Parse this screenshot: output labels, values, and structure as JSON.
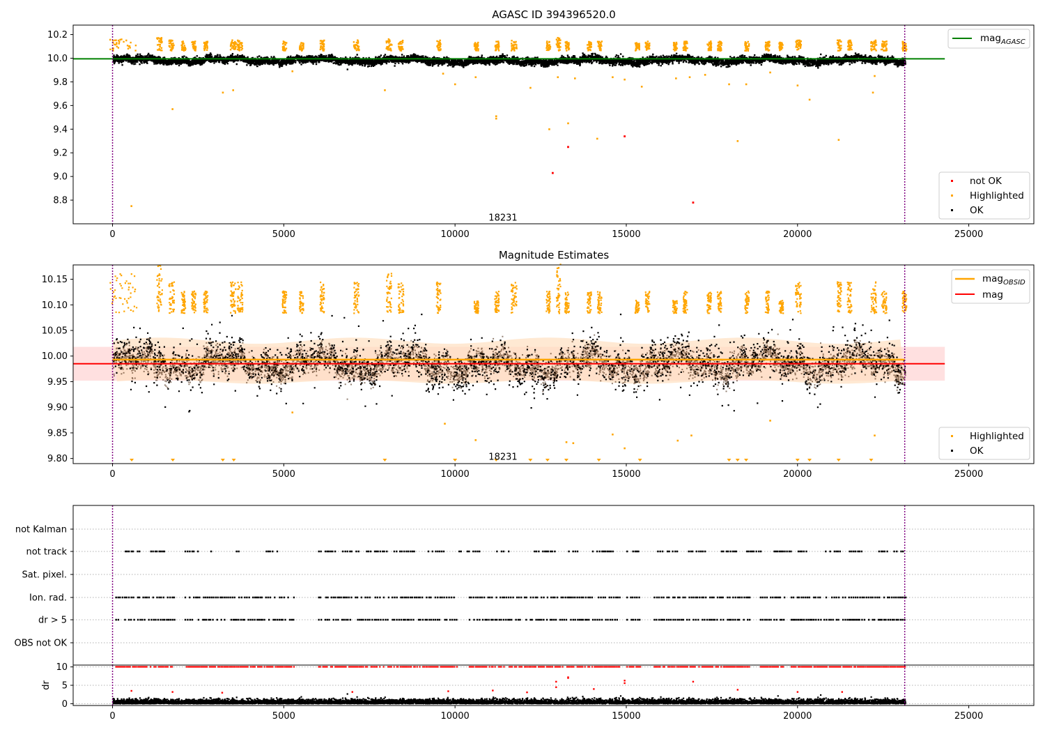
{
  "chart_data": [
    {
      "id": "agasc",
      "type": "scatter",
      "title": "AGASC ID 394396520.0",
      "xlim": [
        -1150,
        26900
      ],
      "ylim": [
        8.6,
        10.28
      ],
      "xticks": [
        0,
        5000,
        10000,
        15000,
        20000,
        25000
      ],
      "yticks": [
        8.8,
        9.0,
        9.2,
        9.4,
        9.6,
        9.8,
        10.0,
        10.2
      ],
      "ytick_labels": [
        "8.8",
        "9.0",
        "9.2",
        "9.4",
        "9.6",
        "9.8",
        "10.0",
        "10.2"
      ],
      "vlines": [
        0,
        23130
      ],
      "hline": {
        "name": "mag_AGASC",
        "legend_main": "mag",
        "legend_sub": "AGASC",
        "value": 9.995,
        "x_range": [
          -1150,
          24300
        ],
        "color": "#008000"
      },
      "obsid_label": {
        "text": "18231",
        "x": 11400,
        "y": 8.65
      },
      "band": {
        "center": 9.99,
        "half_width": 0.035,
        "wave": 0.02
      },
      "highlight_clusters": [
        [
          300,
          400,
          10.13
        ],
        [
          1350,
          80,
          10.14
        ],
        [
          1700,
          80,
          10.12
        ],
        [
          2050,
          60,
          10.11
        ],
        [
          2350,
          60,
          10.11
        ],
        [
          2700,
          60,
          10.11
        ],
        [
          3500,
          80,
          10.12
        ],
        [
          3700,
          80,
          10.12
        ],
        [
          5000,
          60,
          10.11
        ],
        [
          5500,
          60,
          10.11
        ],
        [
          6100,
          60,
          10.12
        ],
        [
          7100,
          80,
          10.12
        ],
        [
          8050,
          80,
          10.13
        ],
        [
          8400,
          80,
          10.12
        ],
        [
          9500,
          60,
          10.12
        ],
        [
          10600,
          60,
          10.1
        ],
        [
          11200,
          60,
          10.11
        ],
        [
          11700,
          80,
          10.12
        ],
        [
          12700,
          60,
          10.11
        ],
        [
          13000,
          60,
          10.14
        ],
        [
          13250,
          60,
          10.11
        ],
        [
          13900,
          60,
          10.11
        ],
        [
          14200,
          60,
          10.11
        ],
        [
          15300,
          60,
          10.1
        ],
        [
          15600,
          60,
          10.11
        ],
        [
          16400,
          60,
          10.1
        ],
        [
          16700,
          60,
          10.11
        ],
        [
          17400,
          60,
          10.11
        ],
        [
          17700,
          60,
          10.11
        ],
        [
          18500,
          60,
          10.11
        ],
        [
          19100,
          60,
          10.11
        ],
        [
          19500,
          60,
          10.1
        ],
        [
          20000,
          80,
          10.12
        ],
        [
          21200,
          60,
          10.12
        ],
        [
          21500,
          60,
          10.12
        ],
        [
          22200,
          80,
          10.12
        ],
        [
          22500,
          80,
          10.11
        ],
        [
          23100,
          60,
          10.11
        ]
      ],
      "highlight_outliers": [
        [
          550,
          8.75
        ],
        [
          1750,
          9.57
        ],
        [
          3220,
          9.71
        ],
        [
          3520,
          9.73
        ],
        [
          5250,
          9.89
        ],
        [
          7950,
          9.73
        ],
        [
          9650,
          9.87
        ],
        [
          10000,
          9.78
        ],
        [
          10600,
          9.84
        ],
        [
          11200,
          9.49
        ],
        [
          11200,
          9.51
        ],
        [
          12200,
          9.75
        ],
        [
          12750,
          9.4
        ],
        [
          13000,
          9.84
        ],
        [
          13300,
          9.45
        ],
        [
          13500,
          9.83
        ],
        [
          14150,
          9.32
        ],
        [
          14600,
          9.84
        ],
        [
          14950,
          9.82
        ],
        [
          15450,
          9.76
        ],
        [
          16450,
          9.83
        ],
        [
          16850,
          9.84
        ],
        [
          17300,
          9.86
        ],
        [
          18000,
          9.78
        ],
        [
          18250,
          9.3
        ],
        [
          18500,
          9.78
        ],
        [
          19200,
          9.88
        ],
        [
          20000,
          9.77
        ],
        [
          20350,
          9.65
        ],
        [
          21200,
          9.31
        ],
        [
          22200,
          9.71
        ],
        [
          22250,
          9.85
        ]
      ],
      "notok_points": [
        [
          12850,
          9.03
        ],
        [
          13300,
          9.25
        ],
        [
          14950,
          9.34
        ],
        [
          16950,
          8.78
        ]
      ],
      "legend": [
        {
          "label": "not OK",
          "color": "#ff0000"
        },
        {
          "label": "Highlighted",
          "color": "#ffa500"
        },
        {
          "label": "OK",
          "color": "#000000"
        }
      ]
    },
    {
      "id": "estimates",
      "type": "scatter",
      "title": "Magnitude Estimates",
      "xlim": [
        -1150,
        26900
      ],
      "ylim": [
        9.79,
        10.178
      ],
      "xticks": [
        0,
        5000,
        10000,
        15000,
        20000,
        25000
      ],
      "yticks": [
        9.8,
        9.85,
        9.9,
        9.95,
        10.0,
        10.05,
        10.1,
        10.15
      ],
      "ytick_labels": [
        "9.80",
        "9.85",
        "9.90",
        "9.95",
        "10.00",
        "10.05",
        "10.10",
        "10.15"
      ],
      "vlines": [
        0,
        23130
      ],
      "mag_obsid": {
        "legend_main": "mag",
        "legend_sub": "OBSID",
        "value": 9.993,
        "color": "#ffa500"
      },
      "mag": {
        "legend": "mag",
        "value": 9.985,
        "band": [
          9.952,
          10.018
        ],
        "x_range": [
          -1150,
          24300
        ],
        "color": "#ff0000"
      },
      "obsid_label": {
        "text": "18231",
        "x": 11400,
        "y": 9.8
      },
      "below_limit_markers": [
        560,
        1760,
        3220,
        3540,
        7950,
        10000,
        11200,
        12200,
        12700,
        13250,
        14200,
        15400,
        18000,
        18250,
        18500,
        20000,
        20350,
        21200,
        22150
      ],
      "legend": [
        {
          "label": "Highlighted",
          "color": "#ffa500"
        },
        {
          "label": "OK",
          "color": "#000000"
        }
      ]
    },
    {
      "id": "flags",
      "type": "scatter",
      "categories": [
        "not Kalman",
        "not track",
        "Sat. pixel.",
        "Ion. rad.",
        "dr > 5",
        "OBS not OK"
      ],
      "xlim": [
        -1150,
        26900
      ],
      "vlines": [
        0,
        23130
      ],
      "flag_segments": {
        "not track": [
          [
            300,
            800
          ],
          [
            1100,
            1500
          ],
          [
            2100,
            2500
          ],
          [
            2800,
            2900
          ],
          [
            3600,
            3800
          ],
          [
            4400,
            4800
          ],
          [
            6000,
            6600
          ],
          [
            6700,
            7200
          ],
          [
            7400,
            8000
          ],
          [
            8200,
            8800
          ],
          [
            9200,
            9800
          ],
          [
            10100,
            10700
          ],
          [
            11200,
            11600
          ],
          [
            12300,
            12900
          ],
          [
            13300,
            13600
          ],
          [
            14000,
            14600
          ],
          [
            15000,
            15400
          ],
          [
            15900,
            16500
          ],
          [
            16800,
            17300
          ],
          [
            17700,
            18200
          ],
          [
            18500,
            19000
          ],
          [
            19300,
            19800
          ],
          [
            20000,
            20400
          ],
          [
            20800,
            21300
          ],
          [
            21500,
            21900
          ],
          [
            22300,
            22600
          ],
          [
            22800,
            23100
          ]
        ],
        "Ion. rad.": [
          [
            80,
            1800
          ],
          [
            2100,
            5300
          ],
          [
            6000,
            10050
          ],
          [
            10400,
            14800
          ],
          [
            15000,
            15400
          ],
          [
            15800,
            18600
          ],
          [
            18900,
            19600
          ],
          [
            19800,
            23150
          ]
        ],
        "dr > 5": [
          [
            80,
            1800
          ],
          [
            2100,
            5300
          ],
          [
            6000,
            10050
          ],
          [
            10400,
            14800
          ],
          [
            15000,
            15400
          ],
          [
            15800,
            18600
          ],
          [
            18900,
            19600
          ],
          [
            19800,
            23150
          ]
        ]
      }
    },
    {
      "id": "dr",
      "type": "scatter",
      "ylabel": "dr",
      "xlim": [
        -1150,
        26900
      ],
      "ylim": [
        -0.5,
        10.5
      ],
      "xticks": [
        0,
        5000,
        10000,
        15000,
        20000,
        25000
      ],
      "yticks": [
        0,
        5,
        10
      ],
      "ytick_labels": [
        "0",
        "5",
        "10"
      ],
      "vlines": [
        0,
        23130
      ],
      "dr_outliers": [
        [
          550,
          3.5
        ],
        [
          1750,
          3.2
        ],
        [
          3200,
          3
        ],
        [
          7000,
          3.2
        ],
        [
          9800,
          3.4
        ],
        [
          11100,
          3.6
        ],
        [
          12100,
          3.1
        ],
        [
          12950,
          6
        ],
        [
          12950,
          4.5
        ],
        [
          13300,
          7
        ],
        [
          13300,
          7.2
        ],
        [
          14050,
          4
        ],
        [
          14950,
          6.3
        ],
        [
          14950,
          5.6
        ],
        [
          16950,
          6
        ],
        [
          18250,
          3.8
        ],
        [
          20000,
          3.2
        ],
        [
          21300,
          3.2
        ]
      ]
    }
  ],
  "colors": {
    "ok": "#000000",
    "highlighted": "#ffa500",
    "not_ok": "#ff0000",
    "agasc_line": "#008000",
    "vline": "#800080",
    "grid": "#b0b0b0",
    "band_fill": "#ffcccc",
    "obsid_band": "#ffe0c0"
  }
}
